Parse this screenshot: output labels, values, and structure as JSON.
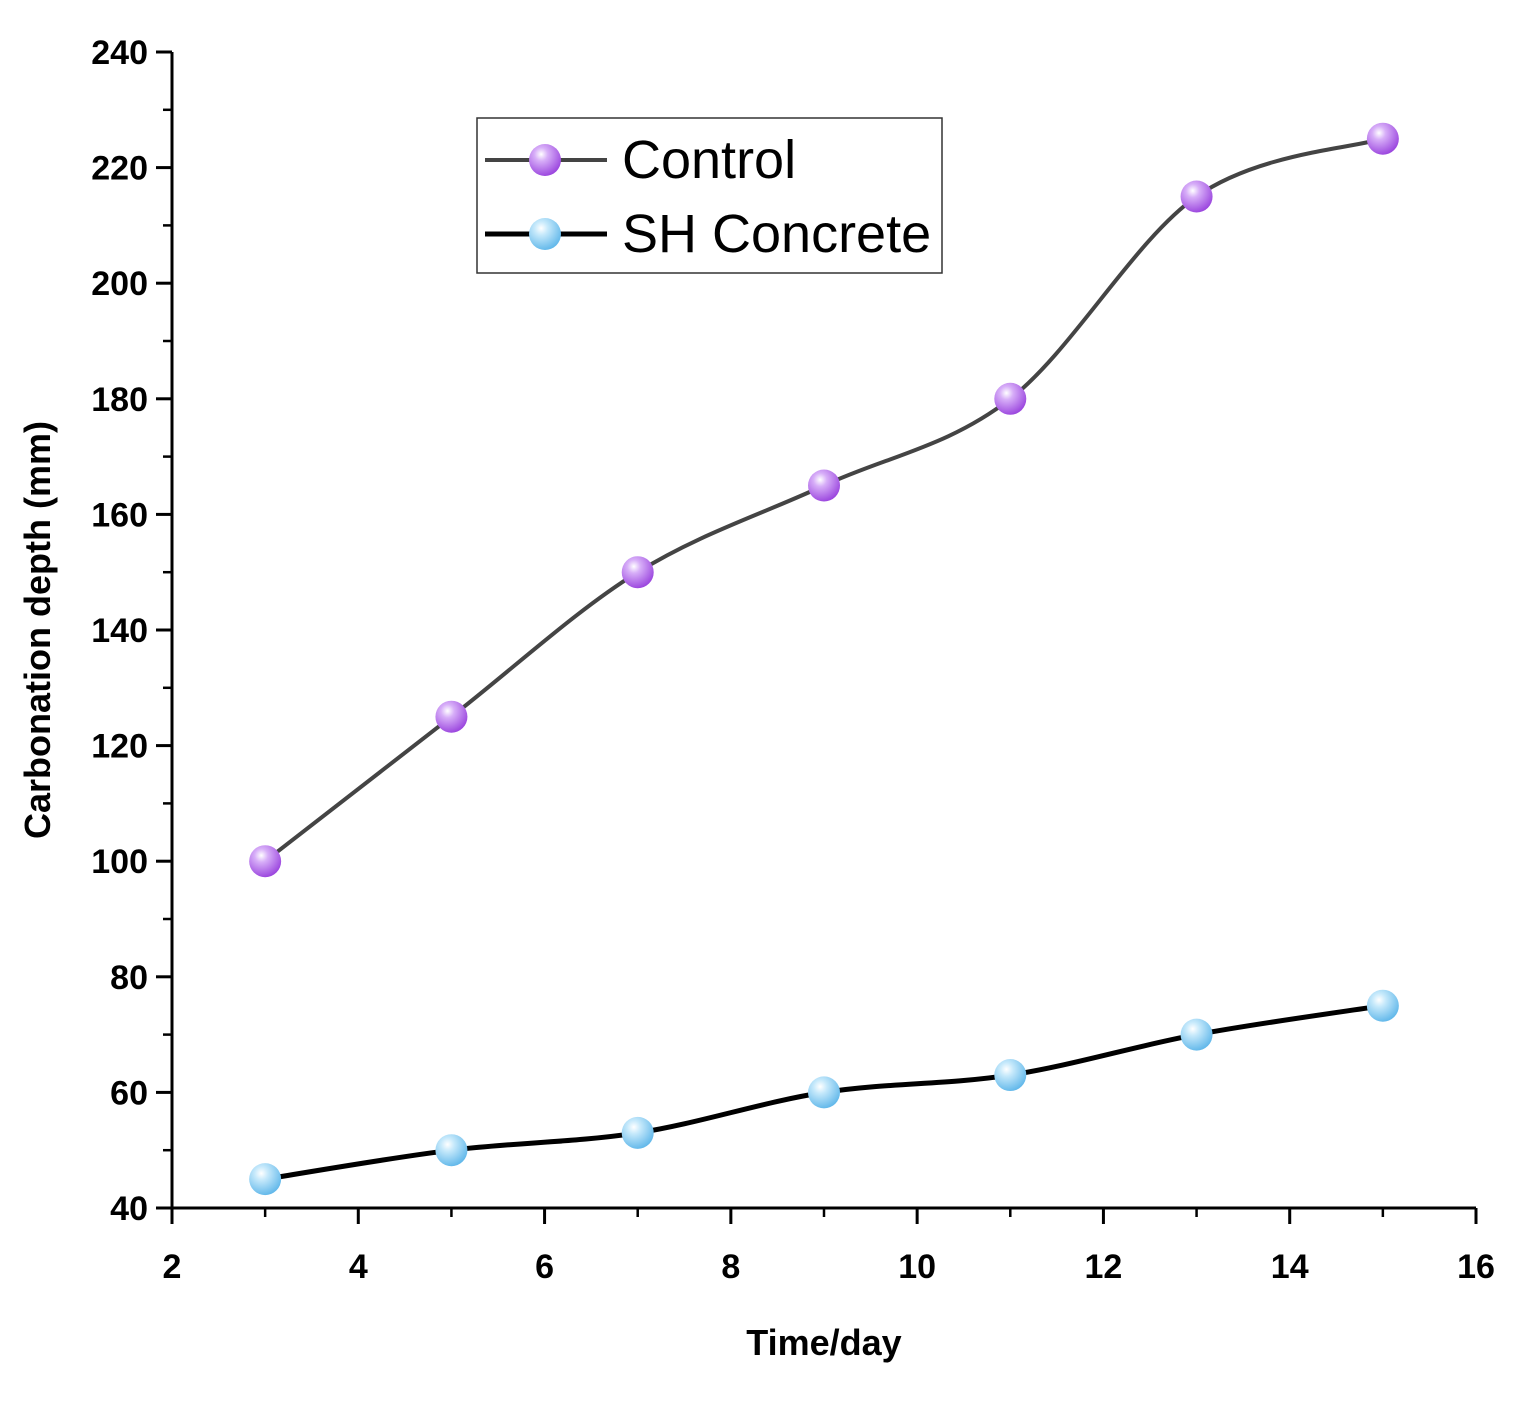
{
  "chart_data": {
    "type": "line",
    "title": "",
    "xlabel": "Time/day",
    "ylabel": "Carbonation depth (mm)",
    "xlim": [
      2,
      16
    ],
    "ylim": [
      40,
      240
    ],
    "xticks": [
      2,
      4,
      6,
      8,
      10,
      12,
      14,
      16
    ],
    "yticks": [
      40,
      60,
      80,
      100,
      120,
      140,
      160,
      180,
      200,
      220,
      240
    ],
    "grid": false,
    "legend_position": "top-center",
    "series": [
      {
        "name": "Control",
        "color": "#a855e8",
        "line_color": "#444444",
        "x": [
          3,
          5,
          7,
          9,
          11,
          13,
          15
        ],
        "y": [
          100,
          125,
          150,
          165,
          180,
          215,
          225
        ]
      },
      {
        "name": "SH Concrete",
        "color": "#7ec8f0",
        "line_color": "#000000",
        "x": [
          3,
          5,
          7,
          9,
          11,
          13,
          15
        ],
        "y": [
          45,
          50,
          53,
          60,
          63,
          70,
          75
        ]
      }
    ]
  }
}
